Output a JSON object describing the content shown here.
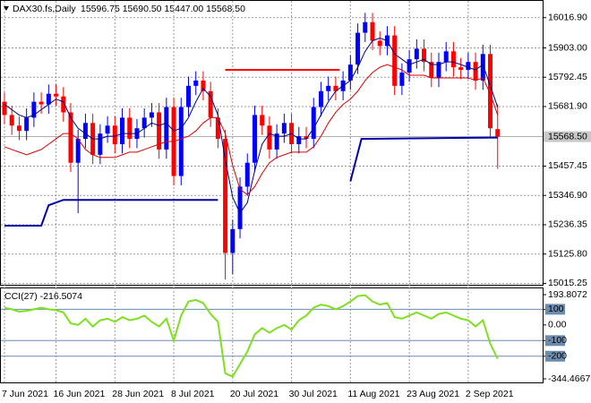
{
  "chart_data": [
    {
      "type": "candlestick",
      "title": "DAX30.fs,Daily",
      "ohlc_label": "15596.75 15690.50 15447.00 15568.50",
      "categories": [
        "7 Jun 2021",
        null,
        null,
        null,
        null,
        null,
        null,
        "16 Jun 2021",
        null,
        null,
        null,
        null,
        null,
        null,
        null,
        "28 Jun 2021",
        null,
        null,
        null,
        null,
        null,
        null,
        null,
        "8 Jul 2021",
        null,
        null,
        null,
        null,
        null,
        null,
        null,
        "20 Jul 2021",
        null,
        null,
        null,
        null,
        null,
        null,
        null,
        "30 Jul 2021",
        null,
        null,
        null,
        null,
        null,
        null,
        null,
        "11 Aug 2021",
        null,
        null,
        null,
        null,
        null,
        null,
        null,
        "23 Aug 2021",
        null,
        null,
        null,
        null,
        null,
        null,
        null,
        "2 Sep 2021",
        null,
        null,
        null,
        null
      ],
      "open": [
        15700,
        15650,
        15610,
        15590,
        15640,
        15700,
        15690,
        15730,
        15720,
        15660,
        15470,
        15560,
        15620,
        15500,
        15580,
        15610,
        15540,
        15640,
        15560,
        15600,
        15640,
        15660,
        15520,
        15680,
        15420,
        15680,
        15760,
        15780,
        15740,
        15640,
        15560,
        15130,
        15220,
        15380,
        15470,
        15650,
        15610,
        15520,
        15580,
        15620,
        15540,
        15570,
        15560,
        15680,
        15740,
        15760,
        15740,
        15780,
        15840,
        15960,
        16000,
        15930,
        15910,
        15950,
        15760,
        15810,
        15860,
        15900,
        15850,
        15790,
        15850,
        15890,
        15830,
        15820,
        15850,
        15780,
        15880,
        15596.75
      ],
      "high": [
        15735,
        15685,
        15645,
        15675,
        15735,
        15735,
        15765,
        15765,
        15755,
        15695,
        15595,
        15655,
        15655,
        15615,
        15645,
        15645,
        15675,
        15675,
        15635,
        15675,
        15695,
        15695,
        15715,
        15715,
        15715,
        15795,
        15815,
        15815,
        15775,
        15675,
        15595,
        15255,
        15415,
        15505,
        15685,
        15685,
        15645,
        15615,
        15655,
        15655,
        15605,
        15605,
        15715,
        15775,
        15795,
        15795,
        15815,
        15875,
        15995,
        16035,
        16035,
        15965,
        15985,
        15985,
        15845,
        15895,
        15935,
        15935,
        15885,
        15885,
        15925,
        15925,
        15865,
        15885,
        15885,
        15915,
        15915,
        15690.5
      ],
      "low": [
        15615,
        15575,
        15555,
        15555,
        15605,
        15655,
        15655,
        15685,
        15625,
        15435,
        15280,
        15525,
        15465,
        15465,
        15545,
        15505,
        15505,
        15525,
        15525,
        15565,
        15605,
        15485,
        15485,
        15385,
        15385,
        15645,
        15725,
        15705,
        15605,
        15525,
        15030,
        15050,
        15185,
        15345,
        15435,
        15575,
        15485,
        15485,
        15545,
        15505,
        15505,
        15525,
        15525,
        15645,
        15705,
        15705,
        15705,
        15745,
        15805,
        15925,
        15895,
        15875,
        15875,
        15725,
        15725,
        15775,
        15825,
        15815,
        15755,
        15755,
        15815,
        15795,
        15785,
        15785,
        15745,
        15745,
        15565,
        15447
      ],
      "close": [
        15650,
        15610,
        15590,
        15640,
        15700,
        15690,
        15730,
        15720,
        15660,
        15470,
        15560,
        15620,
        15500,
        15580,
        15610,
        15540,
        15640,
        15560,
        15600,
        15640,
        15660,
        15520,
        15680,
        15420,
        15680,
        15760,
        15780,
        15740,
        15640,
        15560,
        15130,
        15220,
        15380,
        15470,
        15650,
        15610,
        15520,
        15580,
        15620,
        15540,
        15570,
        15560,
        15680,
        15740,
        15760,
        15740,
        15780,
        15840,
        15960,
        16000,
        15930,
        15910,
        15950,
        15760,
        15810,
        15860,
        15900,
        15850,
        15790,
        15850,
        15890,
        15830,
        15820,
        15850,
        15780,
        15880,
        15600,
        15568.5
      ],
      "up_color": "#0000ff",
      "down_color": "#ff0000",
      "series": [
        {
          "color": "#000080",
          "values": [
            15690,
            15670,
            15650,
            15640,
            15650,
            15670,
            15690,
            15710,
            15700,
            15640,
            15600,
            15580,
            15560,
            15560,
            15570,
            15570,
            15580,
            15580,
            15580,
            15600,
            15620,
            15610,
            15620,
            15590,
            15600,
            15640,
            15700,
            15750,
            15720,
            15650,
            15480,
            15340,
            15280,
            15320,
            15440,
            15540,
            15580,
            15570,
            15570,
            15580,
            15560,
            15560,
            15600,
            15650,
            15700,
            15740,
            15760,
            15780,
            15830,
            15890,
            15930,
            15940,
            15930,
            15880,
            15860,
            15840,
            15850,
            15860,
            15840,
            15840,
            15850,
            15850,
            15840,
            15830,
            15820,
            15840,
            15760,
            15680
          ]
        },
        {
          "color": "#dd0000",
          "values": [
            15530,
            15520,
            15510,
            15500,
            15510,
            15520,
            15540,
            15560,
            15580,
            15580,
            15560,
            15520,
            15500,
            15490,
            15490,
            15490,
            15500,
            15510,
            15510,
            15520,
            15530,
            15540,
            15550,
            15550,
            15560,
            15570,
            15590,
            15620,
            15640,
            15640,
            15580,
            15460,
            15370,
            15350,
            15380,
            15430,
            15470,
            15490,
            15500,
            15510,
            15510,
            15510,
            15530,
            15570,
            15620,
            15660,
            15690,
            15710,
            15740,
            15780,
            15810,
            15830,
            15840,
            15830,
            15820,
            15800,
            15800,
            15800,
            15790,
            15790,
            15790,
            15790,
            15790,
            15790,
            15780,
            15790,
            15730,
            15650
          ]
        }
      ],
      "overlays": [
        {
          "color": "#0000aa",
          "x": [
            0,
            5,
            6,
            7,
            8,
            29
          ],
          "values": [
            15233,
            15233,
            15310,
            15320,
            15330,
            15330
          ]
        },
        {
          "color": "#0000aa",
          "x": [
            47,
            48.5,
            67
          ],
          "values": [
            15400,
            15560,
            15565
          ]
        },
        {
          "color": "#ff0000",
          "x": [
            30,
            45.5
          ],
          "values": [
            15820,
            15820
          ]
        }
      ],
      "price_label": {
        "value": 15568.5,
        "label": "15568.50"
      },
      "ylim": [
        15010,
        16070
      ],
      "yticks": [
        {
          "value": 16016.9,
          "label": "16016.90"
        },
        {
          "value": 15903.0,
          "label": "15903.00"
        },
        {
          "value": 15792.45,
          "label": "15792.45"
        },
        {
          "value": 15681.9,
          "label": "15681.90"
        },
        {
          "value": 15457.45,
          "label": "15457.45"
        },
        {
          "value": 15346.9,
          "label": "15346.90"
        },
        {
          "value": 15236.35,
          "label": "15236.35"
        },
        {
          "value": 15125.8,
          "label": "15125.80"
        },
        {
          "value": 15015.25,
          "label": "15015.25"
        }
      ],
      "grid": true
    },
    {
      "type": "line",
      "title": "CCI(27) -216.5074",
      "color": "#7fe020",
      "values": [
        110,
        100,
        85,
        90,
        100,
        110,
        100,
        95,
        80,
        10,
        0,
        40,
        -10,
        30,
        40,
        20,
        50,
        30,
        40,
        60,
        20,
        -10,
        40,
        -100,
        60,
        150,
        160,
        140,
        70,
        20,
        -310,
        -330,
        -250,
        -170,
        -60,
        -20,
        -50,
        -20,
        0,
        -30,
        30,
        60,
        110,
        130,
        120,
        100,
        120,
        150,
        185,
        190,
        150,
        130,
        140,
        50,
        40,
        60,
        80,
        60,
        40,
        70,
        80,
        60,
        40,
        30,
        -10,
        30,
        -120,
        -216.5074
      ],
      "ylim": [
        -344.4667,
        193.8072
      ],
      "yticks": [
        {
          "value": 193.8072,
          "label": "193.8072"
        },
        100,
        {
          "value": 0,
          "label": "0.00"
        },
        -100,
        -200,
        {
          "value": -344.4667,
          "label": "-344.4667"
        }
      ],
      "levels": [
        100,
        -100,
        -200
      ],
      "level_color": "#6a8caf"
    }
  ]
}
